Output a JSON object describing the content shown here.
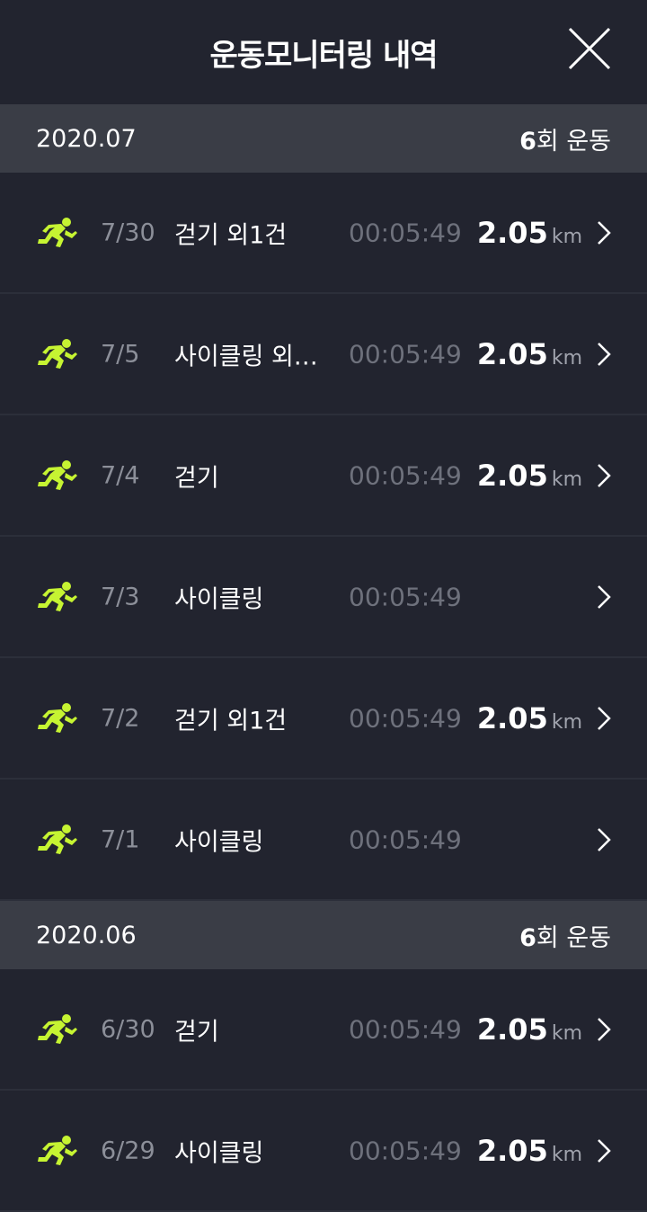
{
  "header": {
    "title": "운동모니터링 내역"
  },
  "sections": [
    {
      "month": "2020.07",
      "count_num": "6",
      "count_suffix": "회 운동",
      "rows": [
        {
          "date": "7/30",
          "name": "걷기 외1건",
          "time": "00:05:49",
          "distance": "2.05",
          "unit": "km"
        },
        {
          "date": "7/5",
          "name": "사이클링 외…",
          "time": "00:05:49",
          "distance": "2.05",
          "unit": "km"
        },
        {
          "date": "7/4",
          "name": "걷기",
          "time": "00:05:49",
          "distance": "2.05",
          "unit": "km"
        },
        {
          "date": "7/3",
          "name": "사이클링",
          "time": "00:05:49",
          "distance": "",
          "unit": ""
        },
        {
          "date": "7/2",
          "name": "걷기 외1건",
          "time": "00:05:49",
          "distance": "2.05",
          "unit": "km"
        },
        {
          "date": "7/1",
          "name": "사이클링",
          "time": "00:05:49",
          "distance": "",
          "unit": ""
        }
      ]
    },
    {
      "month": "2020.06",
      "count_num": "6",
      "count_suffix": "회 운동",
      "rows": [
        {
          "date": "6/30",
          "name": "걷기",
          "time": "00:05:49",
          "distance": "2.05",
          "unit": "km"
        },
        {
          "date": "6/29",
          "name": "사이클링",
          "time": "00:05:49",
          "distance": "2.05",
          "unit": "km"
        }
      ]
    }
  ],
  "colors": {
    "accent": "#c6f432",
    "background": "#22242f",
    "section_bg": "#3a3d46"
  },
  "icons": {
    "row_icon": "running-person-icon",
    "close": "close-icon",
    "chevron": "chevron-right-icon"
  }
}
